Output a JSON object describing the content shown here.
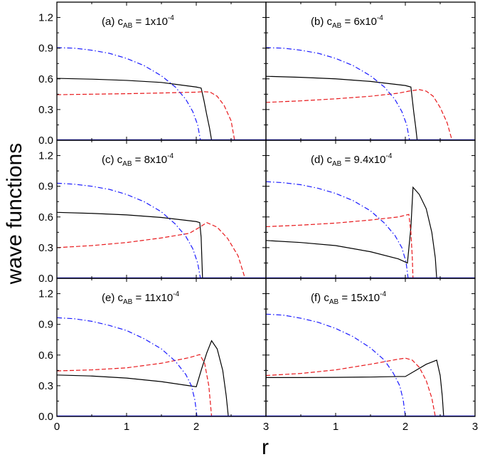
{
  "figure": {
    "ylabel": "wave functions",
    "xlabel": "r"
  },
  "chart_data": [
    {
      "type": "line",
      "label": {
        "pre": "(a) c",
        "sub": "AB",
        "mid": " = 1x10",
        "sup": "-4"
      },
      "xlim": [
        0,
        3
      ],
      "ylim": [
        0,
        1.35
      ],
      "xticks": [
        "0",
        "1",
        "2",
        "3"
      ],
      "yticks": [
        "0.0",
        "0.3",
        "0.6",
        "0.9",
        "1.2"
      ],
      "series": [
        {
          "style": "solid",
          "color": "#000000",
          "points": [
            [
              0,
              0.605
            ],
            [
              0.5,
              0.597
            ],
            [
              1.0,
              0.585
            ],
            [
              1.5,
              0.565
            ],
            [
              2.0,
              0.52
            ],
            [
              2.07,
              0.51
            ],
            [
              2.11,
              0.39
            ],
            [
              2.15,
              0.25
            ],
            [
              2.19,
              0.12
            ],
            [
              2.22,
              0.0
            ]
          ]
        },
        {
          "style": "dashed",
          "color": "#e8191c",
          "points": [
            [
              0,
              0.445
            ],
            [
              0.5,
              0.45
            ],
            [
              1.0,
              0.455
            ],
            [
              1.5,
              0.462
            ],
            [
              2.0,
              0.47
            ],
            [
              2.1,
              0.475
            ],
            [
              2.2,
              0.47
            ],
            [
              2.3,
              0.43
            ],
            [
              2.4,
              0.34
            ],
            [
              2.5,
              0.19
            ],
            [
              2.55,
              0.0
            ]
          ]
        },
        {
          "style": "dashdot",
          "color": "#1a1aff",
          "points": [
            [
              0,
              0.905
            ],
            [
              0.25,
              0.9
            ],
            [
              0.5,
              0.88
            ],
            [
              0.75,
              0.85
            ],
            [
              1.0,
              0.8
            ],
            [
              1.25,
              0.73
            ],
            [
              1.5,
              0.63
            ],
            [
              1.7,
              0.52
            ],
            [
              1.85,
              0.4
            ],
            [
              1.95,
              0.28
            ],
            [
              2.02,
              0.15
            ],
            [
              2.06,
              0.0
            ]
          ]
        }
      ]
    },
    {
      "type": "line",
      "label": {
        "pre": "(b) c",
        "sub": "AB",
        "mid": " = 6x10",
        "sup": "-4"
      },
      "xlim": [
        0,
        3
      ],
      "ylim": [
        0,
        1.35
      ],
      "xticks": [
        "0",
        "1",
        "2",
        "3"
      ],
      "yticks": [
        "0.0",
        "0.3",
        "0.6",
        "0.9",
        "1.2"
      ],
      "series": [
        {
          "style": "solid",
          "color": "#000000",
          "points": [
            [
              0,
              0.625
            ],
            [
              0.5,
              0.615
            ],
            [
              1.0,
              0.6
            ],
            [
              1.5,
              0.575
            ],
            [
              2.0,
              0.535
            ],
            [
              2.08,
              0.52
            ],
            [
              2.1,
              0.4
            ],
            [
              2.12,
              0.28
            ],
            [
              2.15,
              0.12
            ],
            [
              2.17,
              0.0
            ]
          ]
        },
        {
          "style": "dashed",
          "color": "#e8191c",
          "points": [
            [
              0,
              0.37
            ],
            [
              0.5,
              0.385
            ],
            [
              1.0,
              0.405
            ],
            [
              1.5,
              0.43
            ],
            [
              1.9,
              0.46
            ],
            [
              2.05,
              0.48
            ],
            [
              2.2,
              0.495
            ],
            [
              2.3,
              0.48
            ],
            [
              2.4,
              0.43
            ],
            [
              2.5,
              0.32
            ],
            [
              2.6,
              0.17
            ],
            [
              2.67,
              0.0
            ]
          ]
        },
        {
          "style": "dashdot",
          "color": "#1a1aff",
          "points": [
            [
              0,
              0.905
            ],
            [
              0.25,
              0.9
            ],
            [
              0.5,
              0.88
            ],
            [
              0.75,
              0.85
            ],
            [
              1.0,
              0.8
            ],
            [
              1.25,
              0.73
            ],
            [
              1.5,
              0.63
            ],
            [
              1.7,
              0.52
            ],
            [
              1.85,
              0.4
            ],
            [
              1.95,
              0.28
            ],
            [
              2.02,
              0.15
            ],
            [
              2.06,
              0.0
            ]
          ]
        }
      ]
    },
    {
      "type": "line",
      "label": {
        "pre": "(c) c",
        "sub": "AB",
        "mid": " = 8x10",
        "sup": "-4"
      },
      "xlim": [
        0,
        3
      ],
      "ylim": [
        0,
        1.35
      ],
      "xticks": [
        "0",
        "1",
        "2",
        "3"
      ],
      "yticks": [
        "0.0",
        "0.3",
        "0.6",
        "0.9",
        "1.2"
      ],
      "series": [
        {
          "style": "solid",
          "color": "#000000",
          "points": [
            [
              0,
              0.645
            ],
            [
              0.5,
              0.635
            ],
            [
              1.0,
              0.62
            ],
            [
              1.5,
              0.595
            ],
            [
              2.0,
              0.555
            ],
            [
              2.05,
              0.545
            ],
            [
              2.07,
              0.4
            ],
            [
              2.08,
              0.2
            ],
            [
              2.09,
              0.0
            ]
          ]
        },
        {
          "style": "dashed",
          "color": "#e8191c",
          "points": [
            [
              0,
              0.3
            ],
            [
              0.5,
              0.32
            ],
            [
              1.0,
              0.35
            ],
            [
              1.5,
              0.395
            ],
            [
              1.9,
              0.44
            ],
            [
              2.05,
              0.5
            ],
            [
              2.15,
              0.545
            ],
            [
              2.3,
              0.5
            ],
            [
              2.45,
              0.39
            ],
            [
              2.6,
              0.22
            ],
            [
              2.7,
              0.0
            ]
          ]
        },
        {
          "style": "dashdot",
          "color": "#1a1aff",
          "points": [
            [
              0,
              0.93
            ],
            [
              0.25,
              0.92
            ],
            [
              0.5,
              0.9
            ],
            [
              0.75,
              0.87
            ],
            [
              1.0,
              0.82
            ],
            [
              1.25,
              0.75
            ],
            [
              1.5,
              0.65
            ],
            [
              1.7,
              0.53
            ],
            [
              1.85,
              0.41
            ],
            [
              1.95,
              0.29
            ],
            [
              2.02,
              0.15
            ],
            [
              2.06,
              0.0
            ]
          ]
        }
      ]
    },
    {
      "type": "line",
      "label": {
        "pre": "(d) c",
        "sub": "AB",
        "mid": " = 9.4x10",
        "sup": "-4"
      },
      "xlim": [
        0,
        3
      ],
      "ylim": [
        0,
        1.35
      ],
      "xticks": [
        "0",
        "1",
        "2",
        "3"
      ],
      "yticks": [
        "0.0",
        "0.3",
        "0.6",
        "0.9",
        "1.2"
      ],
      "series": [
        {
          "style": "solid",
          "color": "#000000",
          "points": [
            [
              0,
              0.37
            ],
            [
              0.5,
              0.35
            ],
            [
              1.0,
              0.32
            ],
            [
              1.5,
              0.26
            ],
            [
              1.9,
              0.19
            ],
            [
              2.03,
              0.15
            ],
            [
              2.08,
              0.5
            ],
            [
              2.11,
              0.89
            ],
            [
              2.2,
              0.82
            ],
            [
              2.3,
              0.68
            ],
            [
              2.38,
              0.45
            ],
            [
              2.43,
              0.2
            ],
            [
              2.45,
              0.0
            ]
          ]
        },
        {
          "style": "dashed",
          "color": "#e8191c",
          "points": [
            [
              0,
              0.505
            ],
            [
              0.5,
              0.52
            ],
            [
              1.0,
              0.54
            ],
            [
              1.5,
              0.57
            ],
            [
              1.9,
              0.6
            ],
            [
              2.05,
              0.625
            ],
            [
              2.08,
              0.45
            ],
            [
              2.1,
              0.2
            ],
            [
              2.11,
              0.0
            ]
          ]
        },
        {
          "style": "dashdot",
          "color": "#1a1aff",
          "points": [
            [
              0,
              0.945
            ],
            [
              0.25,
              0.935
            ],
            [
              0.5,
              0.915
            ],
            [
              0.75,
              0.88
            ],
            [
              1.0,
              0.83
            ],
            [
              1.25,
              0.76
            ],
            [
              1.5,
              0.66
            ],
            [
              1.7,
              0.54
            ],
            [
              1.85,
              0.42
            ],
            [
              1.95,
              0.3
            ],
            [
              2.01,
              0.16
            ],
            [
              2.04,
              0.0
            ]
          ]
        }
      ]
    },
    {
      "type": "line",
      "label": {
        "pre": "(e) c",
        "sub": "AB",
        "mid": " = 11x10",
        "sup": "-4"
      },
      "xlim": [
        0,
        3
      ],
      "ylim": [
        0,
        1.35
      ],
      "xticks": [
        "0",
        "1",
        "2",
        "3"
      ],
      "yticks": [
        "0.0",
        "0.3",
        "0.6",
        "0.9",
        "1.2"
      ],
      "series": [
        {
          "style": "solid",
          "color": "#000000",
          "points": [
            [
              0,
              0.405
            ],
            [
              0.5,
              0.395
            ],
            [
              1.0,
              0.375
            ],
            [
              1.5,
              0.34
            ],
            [
              1.9,
              0.3
            ],
            [
              2.0,
              0.29
            ],
            [
              2.07,
              0.45
            ],
            [
              2.15,
              0.62
            ],
            [
              2.22,
              0.74
            ],
            [
              2.3,
              0.66
            ],
            [
              2.38,
              0.45
            ],
            [
              2.43,
              0.2
            ],
            [
              2.46,
              0.0
            ]
          ]
        },
        {
          "style": "dashed",
          "color": "#e8191c",
          "points": [
            [
              0,
              0.445
            ],
            [
              0.5,
              0.455
            ],
            [
              1.0,
              0.475
            ],
            [
              1.5,
              0.52
            ],
            [
              1.9,
              0.575
            ],
            [
              2.05,
              0.605
            ],
            [
              2.12,
              0.52
            ],
            [
              2.18,
              0.3
            ],
            [
              2.22,
              0.0
            ]
          ]
        },
        {
          "style": "dashdot",
          "color": "#1a1aff",
          "points": [
            [
              0,
              0.965
            ],
            [
              0.25,
              0.955
            ],
            [
              0.5,
              0.93
            ],
            [
              0.75,
              0.89
            ],
            [
              1.0,
              0.84
            ],
            [
              1.25,
              0.76
            ],
            [
              1.5,
              0.66
            ],
            [
              1.7,
              0.54
            ],
            [
              1.85,
              0.41
            ],
            [
              1.93,
              0.3
            ],
            [
              1.98,
              0.16
            ],
            [
              2.01,
              0.0
            ]
          ]
        }
      ]
    },
    {
      "type": "line",
      "label": {
        "pre": "(f) c",
        "sub": "AB",
        "mid": " = 15x10",
        "sup": "-4"
      },
      "xlim": [
        0,
        3
      ],
      "ylim": [
        0,
        1.35
      ],
      "xticks": [
        "0",
        "1",
        "2",
        "3"
      ],
      "yticks": [
        "0.0",
        "0.3",
        "0.6",
        "0.9",
        "1.2"
      ],
      "series": [
        {
          "style": "solid",
          "color": "#000000",
          "points": [
            [
              0,
              0.38
            ],
            [
              0.5,
              0.38
            ],
            [
              1.0,
              0.382
            ],
            [
              1.5,
              0.385
            ],
            [
              1.9,
              0.39
            ],
            [
              2.0,
              0.39
            ],
            [
              2.15,
              0.45
            ],
            [
              2.3,
              0.51
            ],
            [
              2.45,
              0.55
            ],
            [
              2.5,
              0.4
            ],
            [
              2.53,
              0.2
            ],
            [
              2.55,
              0.0
            ]
          ]
        },
        {
          "style": "dashed",
          "color": "#e8191c",
          "points": [
            [
              0,
              0.4
            ],
            [
              0.5,
              0.42
            ],
            [
              1.0,
              0.455
            ],
            [
              1.5,
              0.51
            ],
            [
              1.9,
              0.56
            ],
            [
              2.0,
              0.57
            ],
            [
              2.1,
              0.55
            ],
            [
              2.2,
              0.48
            ],
            [
              2.3,
              0.35
            ],
            [
              2.38,
              0.18
            ],
            [
              2.43,
              0.0
            ]
          ]
        },
        {
          "style": "dashdot",
          "color": "#1a1aff",
          "points": [
            [
              0,
              1.0
            ],
            [
              0.25,
              0.99
            ],
            [
              0.5,
              0.96
            ],
            [
              0.75,
              0.92
            ],
            [
              1.0,
              0.86
            ],
            [
              1.25,
              0.78
            ],
            [
              1.5,
              0.67
            ],
            [
              1.7,
              0.55
            ],
            [
              1.83,
              0.42
            ],
            [
              1.92,
              0.3
            ],
            [
              1.97,
              0.16
            ],
            [
              2.0,
              0.0
            ]
          ]
        }
      ]
    }
  ]
}
